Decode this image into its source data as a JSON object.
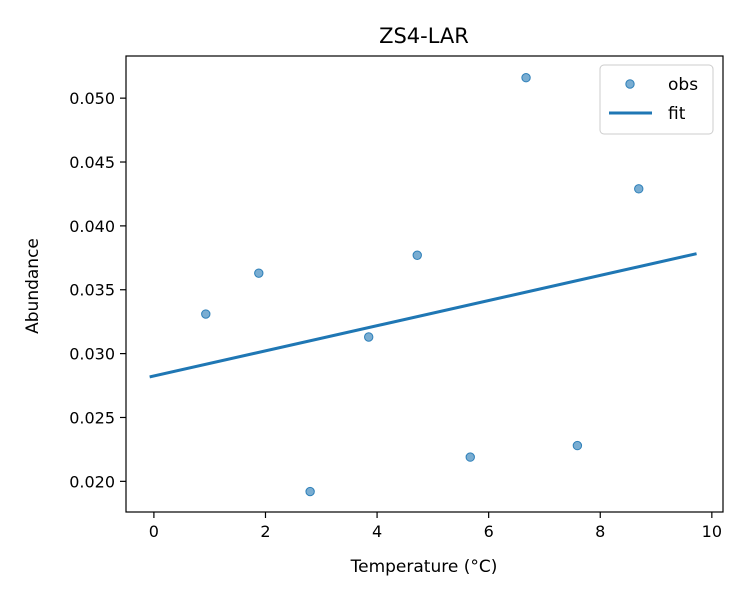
{
  "chart_data": {
    "type": "scatter",
    "title": "ZS4-LAR",
    "xlabel": "Temperature (°C)",
    "ylabel": "Abundance",
    "xlim": [
      -0.5,
      10.2
    ],
    "ylim": [
      0.0176,
      0.0533
    ],
    "xticks": [
      0,
      2,
      4,
      6,
      8,
      10
    ],
    "xtick_labels": [
      "0",
      "2",
      "4",
      "6",
      "8",
      "10"
    ],
    "yticks": [
      0.02,
      0.025,
      0.03,
      0.035,
      0.04,
      0.045,
      0.05
    ],
    "ytick_labels": [
      "0.020",
      "0.025",
      "0.030",
      "0.035",
      "0.040",
      "0.045",
      "0.050"
    ],
    "grid": false,
    "legend_position": "top-right",
    "series": [
      {
        "name": "obs",
        "kind": "scatter",
        "color": "#1f77b4",
        "x": [
          0.93,
          1.88,
          2.8,
          3.85,
          4.72,
          5.67,
          6.67,
          7.59,
          8.69
        ],
        "y": [
          0.0331,
          0.0363,
          0.0192,
          0.0313,
          0.0377,
          0.0219,
          0.0516,
          0.0228,
          0.0429
        ]
      },
      {
        "name": "fit",
        "kind": "line",
        "color": "#1f77b4",
        "x": [
          -0.05,
          9.7
        ],
        "y": [
          0.0282,
          0.0378
        ]
      }
    ]
  }
}
